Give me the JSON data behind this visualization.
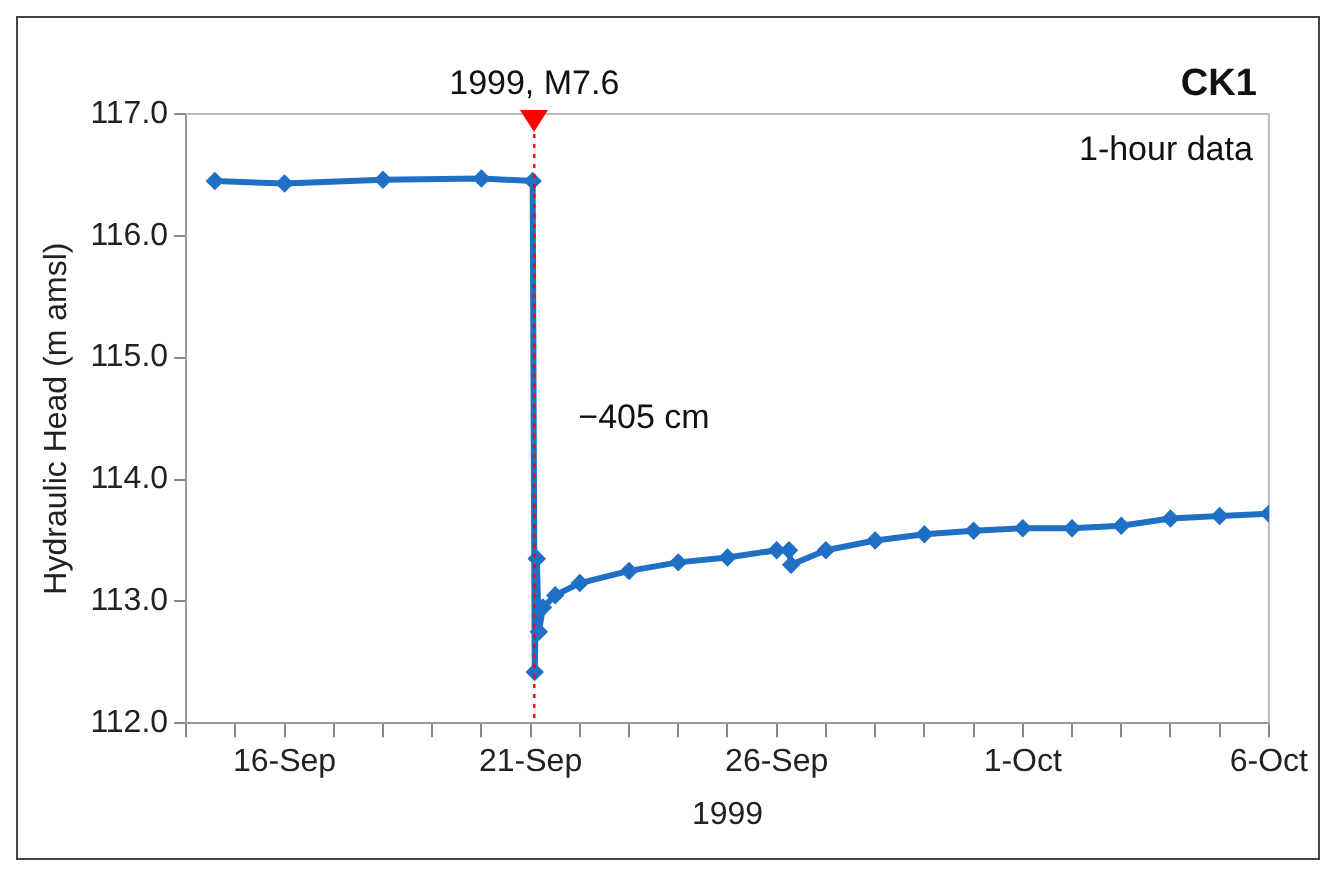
{
  "chart_data": {
    "type": "line",
    "title": "CK1",
    "xlabel": "1999",
    "ylabel": "Hydraulic Head (m amsl)",
    "x": [
      "1999-09-14T14:00",
      "1999-09-16",
      "1999-09-18",
      "1999-09-20",
      "1999-09-21T01:00",
      "1999-09-21T02:00",
      "1999-09-21T03:00",
      "1999-09-21T04:00",
      "1999-09-21T06:00",
      "1999-09-21T12:00",
      "1999-09-22",
      "1999-09-23",
      "1999-09-24",
      "1999-09-25",
      "1999-09-26",
      "1999-09-26T06:00",
      "1999-09-26T07:00",
      "1999-09-27",
      "1999-09-28",
      "1999-09-29",
      "1999-09-30",
      "1999-10-01",
      "1999-10-02",
      "1999-10-03",
      "1999-10-04",
      "1999-10-05",
      "1999-10-06"
    ],
    "series": [
      {
        "color": "#1f6fc5",
        "values": [
          116.45,
          116.43,
          116.46,
          116.47,
          116.45,
          112.42,
          113.35,
          112.75,
          112.95,
          113.05,
          113.15,
          113.25,
          113.32,
          113.36,
          113.42,
          113.42,
          113.3,
          113.42,
          113.5,
          113.55,
          113.58,
          113.6,
          113.6,
          113.62,
          113.68,
          113.7,
          113.72
        ]
      }
    ],
    "xlim": [
      "1999-09-14",
      "1999-10-06"
    ],
    "xticks": [
      {
        "value": "1999-09-14",
        "label": null
      },
      {
        "value": "1999-09-15",
        "label": null
      },
      {
        "value": "1999-09-16",
        "label": "16-Sep"
      },
      {
        "value": "1999-09-17",
        "label": null
      },
      {
        "value": "1999-09-18",
        "label": null
      },
      {
        "value": "1999-09-19",
        "label": null
      },
      {
        "value": "1999-09-20",
        "label": null
      },
      {
        "value": "1999-09-21",
        "label": "21-Sep"
      },
      {
        "value": "1999-09-22",
        "label": null
      },
      {
        "value": "1999-09-23",
        "label": null
      },
      {
        "value": "1999-09-24",
        "label": null
      },
      {
        "value": "1999-09-25",
        "label": null
      },
      {
        "value": "1999-09-26",
        "label": "26-Sep"
      },
      {
        "value": "1999-09-27",
        "label": null
      },
      {
        "value": "1999-09-28",
        "label": null
      },
      {
        "value": "1999-09-29",
        "label": null
      },
      {
        "value": "1999-09-30",
        "label": null
      },
      {
        "value": "1999-10-01",
        "label": "1-Oct"
      },
      {
        "value": "1999-10-02",
        "label": null
      },
      {
        "value": "1999-10-03",
        "label": null
      },
      {
        "value": "1999-10-04",
        "label": null
      },
      {
        "value": "1999-10-05",
        "label": null
      },
      {
        "value": "1999-10-06",
        "label": "6-Oct"
      }
    ],
    "ylim": [
      112,
      117
    ],
    "yticks": [
      {
        "value": 112,
        "label": "112.0"
      },
      {
        "value": 113,
        "label": "113.0"
      },
      {
        "value": 114,
        "label": "114.0"
      },
      {
        "value": 115,
        "label": "115.0"
      },
      {
        "value": 116,
        "label": "116.0"
      },
      {
        "value": 117,
        "label": "117.0"
      }
    ],
    "ref_lines": [
      {
        "axis": "x",
        "value": "1999-09-21T01:47",
        "label": "1999, M7.6",
        "color": "#ff0000",
        "line_style": "dotted"
      }
    ],
    "annotations": [
      {
        "text": "−405 cm",
        "x": "1999-09-21T01:47",
        "y": 114.5
      },
      "1-hour data"
    ],
    "marker": "diamond",
    "line_style": "solid",
    "grid": false,
    "legend": false
  }
}
